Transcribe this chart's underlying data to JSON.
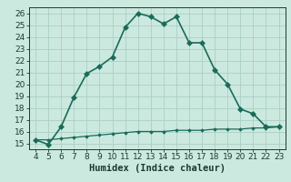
{
  "xlabel": "Humidex (Indice chaleur)",
  "x_main": [
    4,
    5,
    6,
    7,
    8,
    9,
    10,
    11,
    12,
    13,
    14,
    15,
    16,
    17,
    18,
    19,
    20,
    21,
    22,
    23
  ],
  "y_main": [
    15.3,
    14.9,
    16.4,
    18.9,
    20.9,
    21.5,
    22.3,
    24.8,
    26.0,
    25.7,
    25.1,
    25.7,
    23.5,
    23.5,
    21.2,
    20.0,
    17.9,
    17.5,
    16.4,
    16.4
  ],
  "x_flat": [
    4,
    5,
    6,
    7,
    8,
    9,
    10,
    11,
    12,
    13,
    14,
    15,
    16,
    17,
    18,
    19,
    20,
    21,
    22,
    23
  ],
  "y_flat": [
    15.3,
    15.3,
    15.4,
    15.5,
    15.6,
    15.7,
    15.8,
    15.9,
    16.0,
    16.0,
    16.0,
    16.1,
    16.1,
    16.1,
    16.2,
    16.2,
    16.2,
    16.3,
    16.3,
    16.4
  ],
  "line_color": "#1a6b5a",
  "bg_color": "#cce9df",
  "grid_color": "#aacfc4",
  "text_color": "#1a3a30",
  "xlim": [
    3.5,
    23.5
  ],
  "ylim": [
    14.5,
    26.5
  ],
  "yticks": [
    15,
    16,
    17,
    18,
    19,
    20,
    21,
    22,
    23,
    24,
    25,
    26
  ],
  "xticks": [
    4,
    5,
    6,
    7,
    8,
    9,
    10,
    11,
    12,
    13,
    14,
    15,
    16,
    17,
    18,
    19,
    20,
    21,
    22,
    23
  ],
  "tick_fontsize": 6.5,
  "xlabel_fontsize": 7.5
}
